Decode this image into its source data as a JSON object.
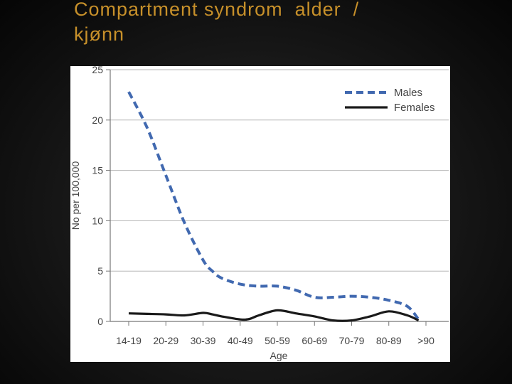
{
  "slide": {
    "title": "Compartment syndrom  alder  /\nkjønn"
  },
  "chart_data": {
    "type": "line",
    "title": "",
    "xlabel": "Age",
    "ylabel": "No per 100,000",
    "ylim": [
      0,
      25
    ],
    "yticks": [
      0,
      5,
      10,
      15,
      20,
      25
    ],
    "categories": [
      "14-19",
      "20-29",
      "30-39",
      "40-49",
      "50-59",
      "60-69",
      "70-79",
      "80-89",
      ">90"
    ],
    "grid": "horizontal",
    "legend": "top-right",
    "series": [
      {
        "name": "Males",
        "color": "#4169b0",
        "style": "dashed",
        "x": [
          0,
          0.5,
          1,
          1.5,
          2,
          2.25,
          2.5,
          3,
          3.5,
          4,
          4.5,
          5,
          5.5,
          6,
          6.5,
          7,
          7.5,
          7.8
        ],
        "y": [
          22.8,
          19.2,
          14.5,
          9.8,
          6.1,
          5.0,
          4.3,
          3.7,
          3.5,
          3.5,
          3.1,
          2.4,
          2.4,
          2.5,
          2.4,
          2.1,
          1.5,
          0.2
        ]
      },
      {
        "name": "Females",
        "color": "#1a1a1a",
        "style": "solid",
        "x": [
          0,
          0.5,
          1,
          1.5,
          2,
          2.25,
          2.5,
          3,
          3.25,
          3.5,
          4,
          4.5,
          5,
          5.5,
          6,
          6.5,
          7,
          7.5,
          7.8
        ],
        "y": [
          0.8,
          0.75,
          0.7,
          0.6,
          0.85,
          0.7,
          0.5,
          0.2,
          0.25,
          0.6,
          1.1,
          0.8,
          0.5,
          0.1,
          0.1,
          0.5,
          1.0,
          0.6,
          0.1
        ]
      }
    ]
  }
}
